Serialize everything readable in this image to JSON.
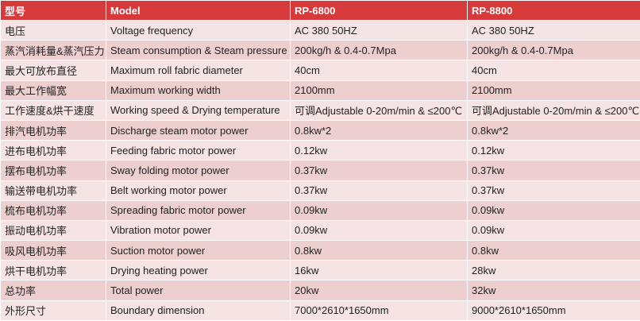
{
  "table": {
    "header": [
      "型号",
      "Model",
      "RP-6800",
      "RP-8800"
    ],
    "rows": [
      [
        "电压",
        "Voltage frequency",
        "AC 380 50HZ",
        "AC 380 50HZ"
      ],
      [
        "蒸汽消耗量&蒸汽压力",
        "Steam consumption & Steam pressure",
        "200kg/h & 0.4-0.7Mpa",
        "200kg/h & 0.4-0.7Mpa"
      ],
      [
        "最大可放布直径",
        "Maximum roll fabric diameter",
        "40cm",
        "40cm"
      ],
      [
        "最大工作幅宽",
        "Maximum working width",
        "2100mm",
        "2100mm"
      ],
      [
        "工作速度&烘干速度",
        "Working speed & Drying temperature",
        "可调Adjustable 0-20m/min & ≤200℃",
        "可调Adjustable 0-20m/min & ≤200℃"
      ],
      [
        "排汽电机功率",
        "Discharge steam motor power",
        "0.8kw*2",
        "0.8kw*2"
      ],
      [
        "进布电机功率",
        "Feeding fabric motor power",
        "0.12kw",
        "0.12kw"
      ],
      [
        "摆布电机功率",
        "Sway folding motor power",
        "0.37kw",
        "0.37kw"
      ],
      [
        "输送带电机功率",
        "Belt working motor power",
        "0.37kw",
        "0.37kw"
      ],
      [
        "梳布电机功率",
        "Spreading fabric motor power",
        "0.09kw",
        "0.09kw"
      ],
      [
        "振动电机功率",
        "Vibration motor power",
        "0.09kw",
        "0.09kw"
      ],
      [
        "吸风电机功率",
        "Suction motor power",
        "0.8kw",
        "0.8kw"
      ],
      [
        "烘干电机功率",
        "Drying heating power",
        "16kw",
        "28kw"
      ],
      [
        "总功率",
        "Total power",
        "20kw",
        "32kw"
      ],
      [
        "外形尺寸",
        "Boundary dimension",
        "7000*2610*1650mm",
        "9000*2610*1650mm"
      ]
    ]
  }
}
